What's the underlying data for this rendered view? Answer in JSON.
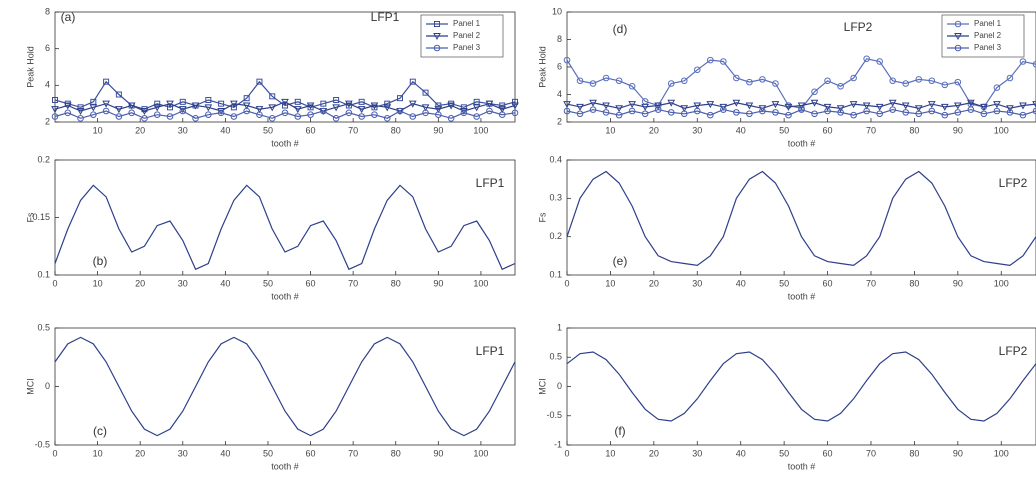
{
  "chart_data": [
    {
      "type": "line",
      "label": "(a)",
      "title": "LFP1",
      "xlabel": "tooth #",
      "ylabel": "Peak Hold",
      "legend": "upper right",
      "xlim": [
        0,
        108
      ],
      "xticks": [
        10,
        20,
        30,
        40,
        50,
        60,
        70,
        80,
        90,
        100
      ],
      "ylim": [
        2,
        8
      ],
      "yticks": [
        2,
        4,
        6,
        8
      ],
      "x": [
        0,
        3,
        6,
        9,
        12,
        15,
        18,
        21,
        24,
        27,
        30,
        33,
        36,
        39,
        42,
        45,
        48,
        51,
        54,
        57,
        60,
        63,
        66,
        69,
        72,
        75,
        78,
        81,
        84,
        87,
        90,
        93,
        96,
        99,
        102,
        105,
        108
      ],
      "series": [
        {
          "name": "Panel 1",
          "color": "#3a4f9e",
          "marker": "square",
          "values": [
            3.2,
            3.0,
            2.8,
            3.1,
            4.2,
            3.5,
            2.9,
            2.7,
            3.0,
            2.8,
            3.1,
            2.9,
            3.2,
            3.0,
            2.8,
            3.3,
            4.2,
            3.4,
            2.9,
            3.1,
            2.8,
            3.0,
            3.2,
            2.9,
            3.1,
            2.8,
            3.0,
            3.3,
            4.2,
            3.6,
            2.9,
            3.0,
            2.8,
            3.1,
            3.0,
            2.9,
            3.1
          ]
        },
        {
          "name": "Panel 2",
          "color": "#2e3f8a",
          "marker": "triangle",
          "values": [
            2.7,
            2.9,
            2.6,
            2.8,
            3.0,
            2.7,
            2.9,
            2.6,
            2.8,
            3.0,
            2.7,
            2.9,
            2.8,
            2.6,
            3.0,
            2.9,
            2.7,
            2.8,
            3.1,
            2.7,
            2.9,
            2.6,
            2.8,
            3.0,
            2.7,
            2.9,
            2.8,
            2.6,
            3.0,
            2.8,
            2.7,
            2.9,
            2.6,
            2.8,
            3.0,
            2.7,
            2.9
          ]
        },
        {
          "name": "Panel 3",
          "color": "#4a5fae",
          "marker": "circle",
          "values": [
            2.3,
            2.5,
            2.2,
            2.4,
            2.6,
            2.3,
            2.5,
            2.2,
            2.4,
            2.3,
            2.6,
            2.2,
            2.4,
            2.5,
            2.3,
            2.6,
            2.4,
            2.2,
            2.5,
            2.3,
            2.4,
            2.6,
            2.2,
            2.5,
            2.3,
            2.4,
            2.2,
            2.6,
            2.3,
            2.5,
            2.4,
            2.2,
            2.5,
            2.3,
            2.6,
            2.4,
            2.5
          ]
        }
      ]
    },
    {
      "type": "line",
      "label": "(b)",
      "title": "LFP1",
      "xlabel": "tooth #",
      "ylabel": "Fs",
      "color": "#2e3f8a",
      "xlim": [
        0,
        108
      ],
      "xticks": [
        0,
        10,
        20,
        30,
        40,
        50,
        60,
        70,
        80,
        90,
        100
      ],
      "ylim": [
        0.1,
        0.2
      ],
      "yticks": [
        0.1,
        0.15,
        0.2
      ],
      "x": [
        0,
        3,
        6,
        9,
        12,
        15,
        18,
        21,
        24,
        27,
        30,
        33,
        36,
        39,
        42,
        45,
        48,
        51,
        54,
        57,
        60,
        63,
        66,
        69,
        72,
        75,
        78,
        81,
        84,
        87,
        90,
        93,
        96,
        99,
        102,
        105,
        108
      ],
      "values": [
        0.11,
        0.14,
        0.165,
        0.178,
        0.168,
        0.14,
        0.12,
        0.125,
        0.143,
        0.147,
        0.13,
        0.105,
        0.11,
        0.14,
        0.165,
        0.178,
        0.168,
        0.14,
        0.12,
        0.125,
        0.143,
        0.147,
        0.13,
        0.105,
        0.11,
        0.14,
        0.165,
        0.178,
        0.168,
        0.14,
        0.12,
        0.125,
        0.143,
        0.147,
        0.13,
        0.105,
        0.11
      ]
    },
    {
      "type": "line",
      "label": "(c)",
      "title": "LFP1",
      "xlabel": "tooth #",
      "ylabel": "MCI",
      "color": "#2e3f8a",
      "xlim": [
        0,
        108
      ],
      "xticks": [
        0,
        10,
        20,
        30,
        40,
        50,
        60,
        70,
        80,
        90,
        100
      ],
      "ylim": [
        -0.5,
        0.5
      ],
      "yticks": [
        -0.5,
        0,
        0.5
      ],
      "x": [
        0,
        3,
        6,
        9,
        12,
        15,
        18,
        21,
        24,
        27,
        30,
        33,
        36,
        39,
        42,
        45,
        48,
        51,
        54,
        57,
        60,
        63,
        66,
        69,
        72,
        75,
        78,
        81,
        84,
        87,
        90,
        93,
        96,
        99,
        102,
        105,
        108
      ],
      "values": [
        0.21,
        0.364,
        0.42,
        0.364,
        0.21,
        0,
        -0.21,
        -0.364,
        -0.42,
        -0.364,
        -0.21,
        0,
        0.21,
        0.364,
        0.42,
        0.364,
        0.21,
        0,
        -0.21,
        -0.364,
        -0.42,
        -0.364,
        -0.21,
        0,
        0.21,
        0.364,
        0.42,
        0.364,
        0.21,
        0,
        -0.21,
        -0.364,
        -0.42,
        -0.364,
        -0.21,
        0,
        0.21
      ]
    },
    {
      "type": "line",
      "label": "(d)",
      "title": "LFP2",
      "xlabel": "tooth #",
      "ylabel": "Peak Hold",
      "legend": "upper right",
      "xlim": [
        0,
        108
      ],
      "xticks": [
        10,
        20,
        30,
        40,
        50,
        60,
        70,
        80,
        90,
        100
      ],
      "ylim": [
        2,
        10
      ],
      "yticks": [
        2,
        4,
        6,
        8,
        10
      ],
      "x": [
        0,
        3,
        6,
        9,
        12,
        15,
        18,
        21,
        24,
        27,
        30,
        33,
        36,
        39,
        42,
        45,
        48,
        51,
        54,
        57,
        60,
        63,
        66,
        69,
        72,
        75,
        78,
        81,
        84,
        87,
        90,
        93,
        96,
        99,
        102,
        105,
        108
      ],
      "series": [
        {
          "name": "Panel 1",
          "color": "#5a6fbe",
          "marker": "circle",
          "values": [
            6.5,
            5.0,
            4.8,
            5.2,
            5.0,
            4.6,
            3.5,
            3.2,
            4.8,
            5.0,
            5.8,
            6.5,
            6.4,
            5.2,
            4.9,
            5.1,
            4.8,
            3.2,
            3.0,
            4.2,
            5.0,
            4.6,
            5.2,
            6.6,
            6.4,
            5.0,
            4.8,
            5.1,
            5.0,
            4.7,
            4.9,
            3.3,
            3.1,
            4.5,
            5.2,
            6.4,
            6.2
          ]
        },
        {
          "name": "Panel 2",
          "color": "#2e3f8a",
          "marker": "triangle",
          "values": [
            3.3,
            3.1,
            3.4,
            3.2,
            3.0,
            3.3,
            3.1,
            3.2,
            3.4,
            3.0,
            3.2,
            3.3,
            3.1,
            3.4,
            3.2,
            3.0,
            3.3,
            3.1,
            3.2,
            3.4,
            3.1,
            3.0,
            3.3,
            3.2,
            3.1,
            3.4,
            3.2,
            3.0,
            3.3,
            3.1,
            3.2,
            3.4,
            3.1,
            3.3,
            3.0,
            3.2,
            3.3
          ]
        },
        {
          "name": "Panel 3",
          "color": "#4a5fae",
          "marker": "circle",
          "values": [
            2.8,
            2.6,
            2.9,
            2.7,
            2.5,
            2.8,
            2.6,
            2.9,
            2.7,
            2.6,
            2.8,
            2.5,
            2.9,
            2.7,
            2.6,
            2.8,
            2.7,
            2.5,
            2.9,
            2.6,
            2.8,
            2.7,
            2.5,
            2.8,
            2.6,
            2.9,
            2.7,
            2.6,
            2.8,
            2.5,
            2.7,
            2.9,
            2.6,
            2.8,
            2.7,
            2.5,
            2.8
          ]
        }
      ]
    },
    {
      "type": "line",
      "label": "(e)",
      "title": "LFP2",
      "xlabel": "tooth #",
      "ylabel": "Fs",
      "color": "#2e3f8a",
      "xlim": [
        0,
        108
      ],
      "xticks": [
        0,
        10,
        20,
        30,
        40,
        50,
        60,
        70,
        80,
        90,
        100
      ],
      "ylim": [
        0.1,
        0.4
      ],
      "yticks": [
        0.1,
        0.2,
        0.3,
        0.4
      ],
      "x": [
        0,
        3,
        6,
        9,
        12,
        15,
        18,
        21,
        24,
        27,
        30,
        33,
        36,
        39,
        42,
        45,
        48,
        51,
        54,
        57,
        60,
        63,
        66,
        69,
        72,
        75,
        78,
        81,
        84,
        87,
        90,
        93,
        96,
        99,
        102,
        105,
        108
      ],
      "values": [
        0.2,
        0.3,
        0.35,
        0.37,
        0.34,
        0.28,
        0.2,
        0.15,
        0.135,
        0.13,
        0.125,
        0.15,
        0.2,
        0.3,
        0.35,
        0.37,
        0.34,
        0.28,
        0.2,
        0.15,
        0.135,
        0.13,
        0.125,
        0.15,
        0.2,
        0.3,
        0.35,
        0.37,
        0.34,
        0.28,
        0.2,
        0.15,
        0.135,
        0.13,
        0.125,
        0.15,
        0.2
      ]
    },
    {
      "type": "line",
      "label": "(f)",
      "title": "LFP2",
      "xlabel": "tooth #",
      "ylabel": "MCI",
      "color": "#2e3f8a",
      "xlim": [
        0,
        108
      ],
      "xticks": [
        0,
        10,
        20,
        30,
        40,
        50,
        60,
        70,
        80,
        90,
        100
      ],
      "ylim": [
        -1,
        1
      ],
      "yticks": [
        -1,
        -0.5,
        0,
        0.5,
        1
      ],
      "x": [
        0,
        3,
        6,
        9,
        12,
        15,
        18,
        21,
        24,
        27,
        30,
        33,
        36,
        39,
        42,
        45,
        48,
        51,
        54,
        57,
        60,
        63,
        66,
        69,
        72,
        75,
        78,
        81,
        84,
        87,
        90,
        93,
        96,
        99,
        102,
        105,
        108
      ],
      "values": [
        0.39,
        0.56,
        0.59,
        0.46,
        0.21,
        -0.1,
        -0.39,
        -0.56,
        -0.59,
        -0.46,
        -0.21,
        0.1,
        0.39,
        0.56,
        0.59,
        0.46,
        0.21,
        -0.1,
        -0.39,
        -0.56,
        -0.59,
        -0.46,
        -0.21,
        0.1,
        0.39,
        0.56,
        0.59,
        0.46,
        0.21,
        -0.1,
        -0.39,
        -0.56,
        -0.59,
        -0.46,
        -0.21,
        0.1,
        0.39
      ]
    }
  ]
}
